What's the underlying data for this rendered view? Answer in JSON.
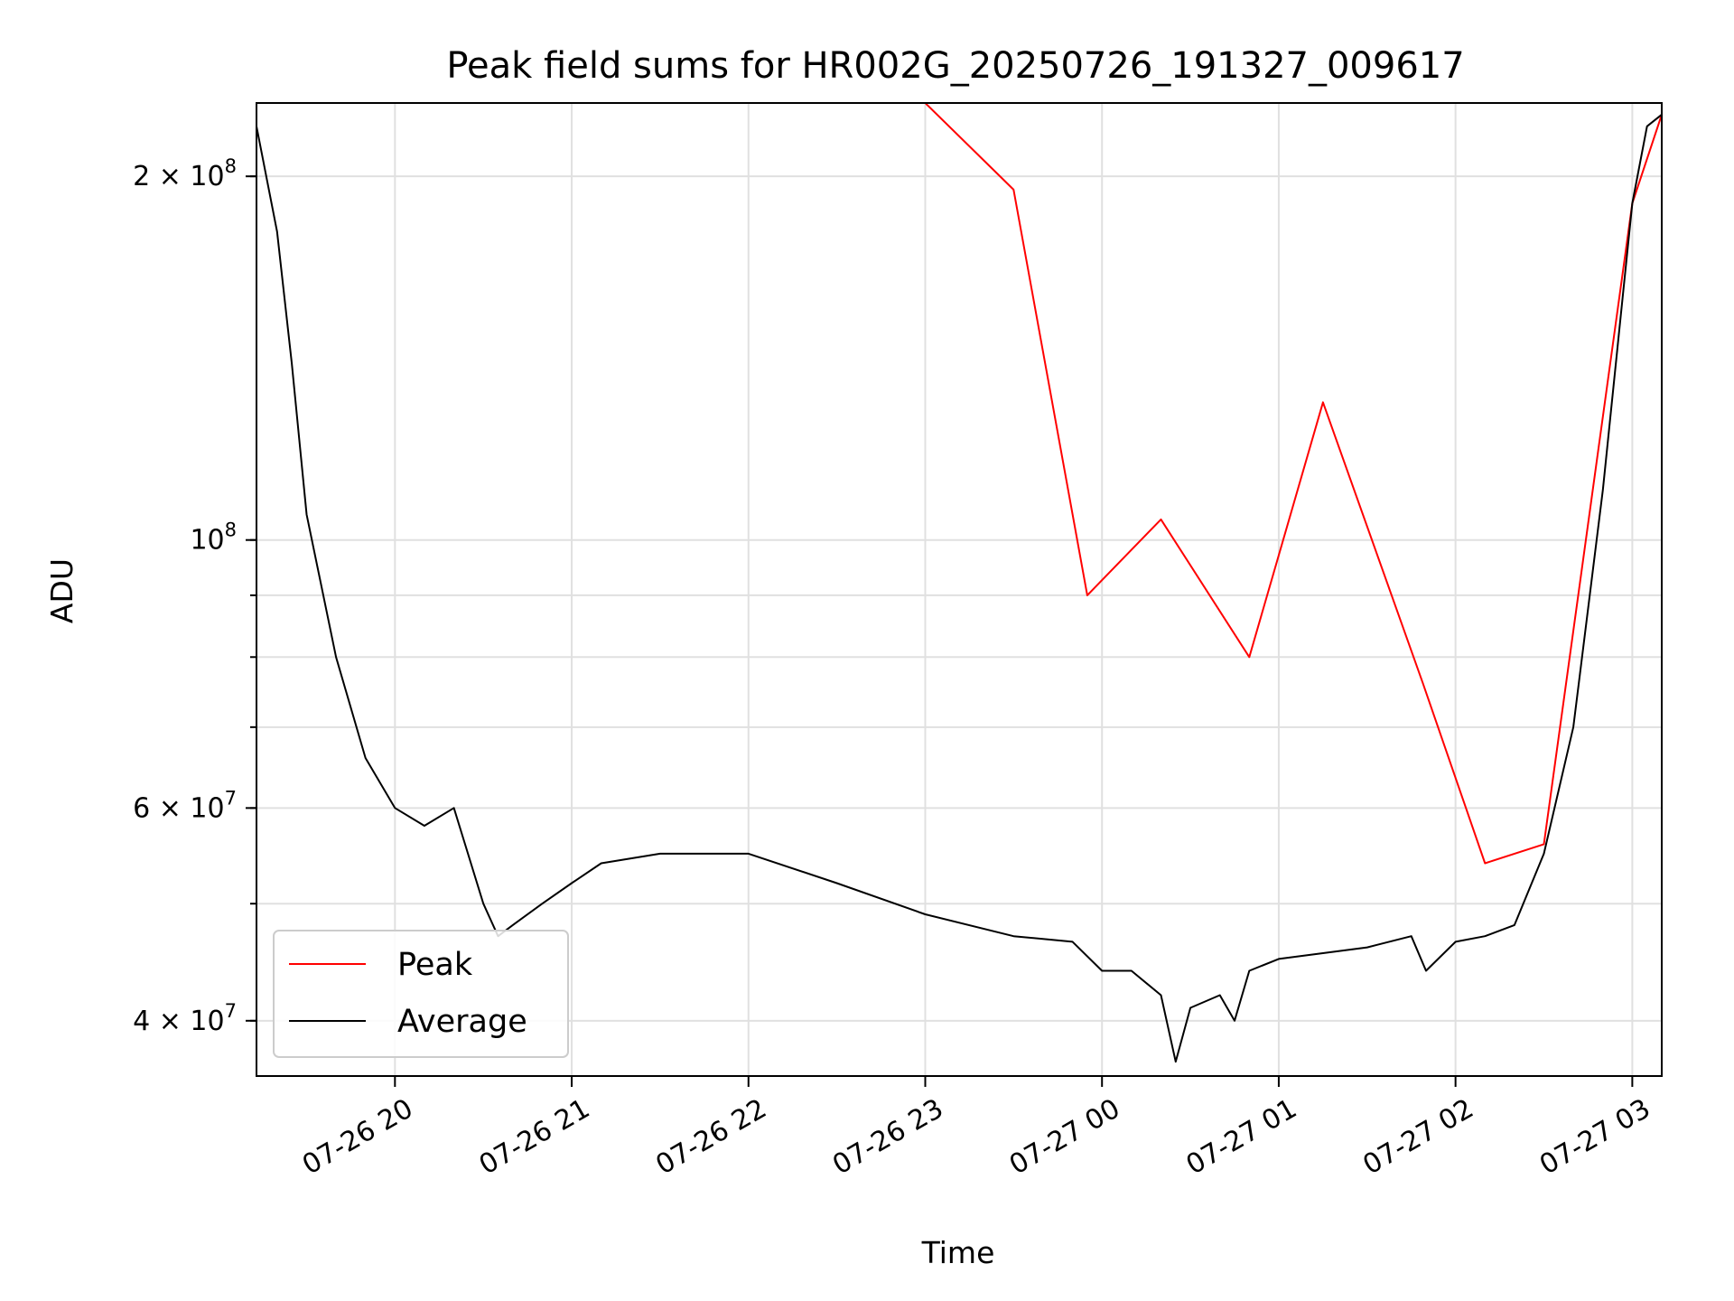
{
  "chart_data": {
    "type": "line",
    "title": "Peak field sums for HR002G_20250726_191327_009617",
    "xlabel": "Time",
    "ylabel": "ADU",
    "y_scale": "log",
    "ylim": [
      36000000,
      230000000
    ],
    "xlim": [
      "2025-07-26 19:13",
      "2025-07-27 03:10"
    ],
    "grid": true,
    "legend_position": "lower left",
    "x_ticks": [
      "07-26 20",
      "07-26 21",
      "07-26 22",
      "07-26 23",
      "07-27 00",
      "07-27 01",
      "07-27 02",
      "07-27 03"
    ],
    "y_ticks": [
      {
        "value": 200000000,
        "mant": "2",
        "exp": "8"
      },
      {
        "value": 100000000,
        "mant": "",
        "exp": "8"
      },
      {
        "value": 60000000,
        "mant": "6",
        "exp": "7"
      },
      {
        "value": 40000000,
        "mant": "4",
        "exp": "7"
      }
    ],
    "tick_times": [
      "2025-07-26 20:00",
      "2025-07-26 21:00",
      "2025-07-26 22:00",
      "2025-07-26 23:00",
      "2025-07-27 00:00",
      "2025-07-27 01:00",
      "2025-07-27 02:00",
      "2025-07-27 03:00"
    ],
    "series": [
      {
        "name": "Average",
        "color": "#000000",
        "x": [
          "2025-07-26 19:13",
          "2025-07-26 19:20",
          "2025-07-26 19:25",
          "2025-07-26 19:30",
          "2025-07-26 19:40",
          "2025-07-26 19:50",
          "2025-07-26 20:00",
          "2025-07-26 20:10",
          "2025-07-26 20:20",
          "2025-07-26 20:30",
          "2025-07-26 20:35",
          "2025-07-26 20:40",
          "2025-07-26 20:50",
          "2025-07-26 21:00",
          "2025-07-26 21:10",
          "2025-07-26 21:30",
          "2025-07-26 22:00",
          "2025-07-26 22:30",
          "2025-07-26 23:00",
          "2025-07-26 23:30",
          "2025-07-26 23:50",
          "2025-07-27 00:00",
          "2025-07-27 00:10",
          "2025-07-27 00:20",
          "2025-07-27 00:25",
          "2025-07-27 00:30",
          "2025-07-27 00:40",
          "2025-07-27 00:45",
          "2025-07-27 00:50",
          "2025-07-27 01:00",
          "2025-07-27 01:30",
          "2025-07-27 01:45",
          "2025-07-27 01:50",
          "2025-07-27 02:00",
          "2025-07-27 02:10",
          "2025-07-27 02:20",
          "2025-07-27 02:30",
          "2025-07-27 02:40",
          "2025-07-27 02:50",
          "2025-07-27 03:00",
          "2025-07-27 03:05",
          "2025-07-27 03:10"
        ],
        "y": [
          220000000,
          180000000,
          140000000,
          105000000,
          80000000,
          66000000,
          60000000,
          58000000,
          60000000,
          50000000,
          47000000,
          48000000,
          50000000,
          52000000,
          54000000,
          55000000,
          55000000,
          52000000,
          49000000,
          47000000,
          46500000,
          44000000,
          44000000,
          42000000,
          37000000,
          41000000,
          42000000,
          40000000,
          44000000,
          45000000,
          46000000,
          47000000,
          44000000,
          46500000,
          47000000,
          48000000,
          55000000,
          70000000,
          110000000,
          190000000,
          220000000,
          225000000
        ]
      },
      {
        "name": "Peak",
        "color": "#ff0000",
        "x": [
          "2025-07-26 19:13",
          "2025-07-26 19:30",
          "2025-07-26 20:00",
          "2025-07-26 20:30",
          "2025-07-26 21:00",
          "2025-07-26 21:30",
          "2025-07-26 22:00",
          "2025-07-26 22:30",
          "2025-07-26 23:00",
          "2025-07-26 23:30",
          "2025-07-26 23:55",
          "2025-07-27 00:20",
          "2025-07-27 00:50",
          "2025-07-27 01:15",
          "2025-07-27 01:49",
          "2025-07-27 02:10",
          "2025-07-27 02:30",
          "2025-07-27 03:00",
          "2025-07-27 03:10"
        ],
        "y": [
          230000000,
          230000000,
          230000000,
          230000000,
          230000000,
          230000000,
          230000000,
          230000000,
          230000000,
          195000000,
          90000000,
          104000000,
          80000000,
          130000000,
          76000000,
          54000000,
          56000000,
          190000000,
          225000000
        ]
      }
    ]
  }
}
